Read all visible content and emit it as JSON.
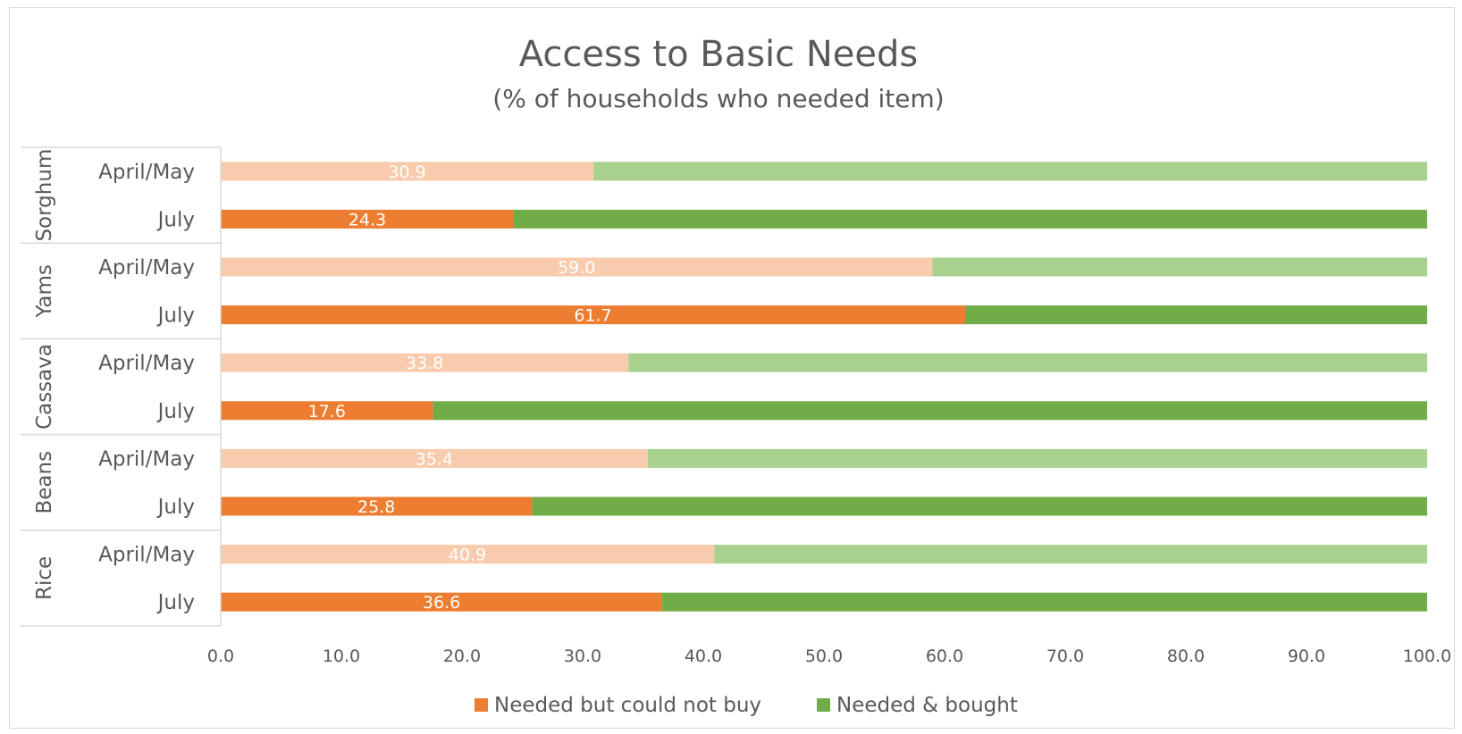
{
  "chart_data": {
    "type": "bar",
    "orientation": "horizontal",
    "stacked": true,
    "title": "Access to Basic Needs",
    "subtitle": "(% of households who needed item)",
    "groups": [
      {
        "name": "Sorghum",
        "rows": [
          {
            "label": "April/May",
            "value": 30.9,
            "period": "april"
          },
          {
            "label": "July",
            "value": 24.3,
            "period": "july"
          }
        ]
      },
      {
        "name": "Yams",
        "rows": [
          {
            "label": "April/May",
            "value": 59.0,
            "period": "april"
          },
          {
            "label": "July",
            "value": 61.7,
            "period": "july"
          }
        ]
      },
      {
        "name": "Cassava",
        "rows": [
          {
            "label": "April/May",
            "value": 33.8,
            "period": "april"
          },
          {
            "label": "July",
            "value": 17.6,
            "period": "july"
          }
        ]
      },
      {
        "name": "Beans",
        "rows": [
          {
            "label": "April/May",
            "value": 35.4,
            "period": "april"
          },
          {
            "label": "July",
            "value": 25.8,
            "period": "july"
          }
        ]
      },
      {
        "name": "Rice",
        "rows": [
          {
            "label": "April/May",
            "value": 40.9,
            "period": "april"
          },
          {
            "label": "July",
            "value": 36.6,
            "period": "july"
          }
        ]
      }
    ],
    "series": [
      {
        "name": "Needed but could not buy"
      },
      {
        "name": "Needed & bought"
      }
    ],
    "xlim": [
      0,
      100
    ],
    "xticks": [
      "0.0",
      "10.0",
      "20.0",
      "30.0",
      "40.0",
      "50.0",
      "60.0",
      "70.0",
      "80.0",
      "90.0",
      "100.0"
    ],
    "grid": false,
    "legend_position": "bottom",
    "colors": {
      "not_buy_july": "#ED7D31",
      "not_buy_april": "#F8CBAD",
      "bought_july": "#70AD47",
      "bought_april": "#A9D18E",
      "text": "#595959",
      "axis": "#d9d9d9"
    }
  }
}
